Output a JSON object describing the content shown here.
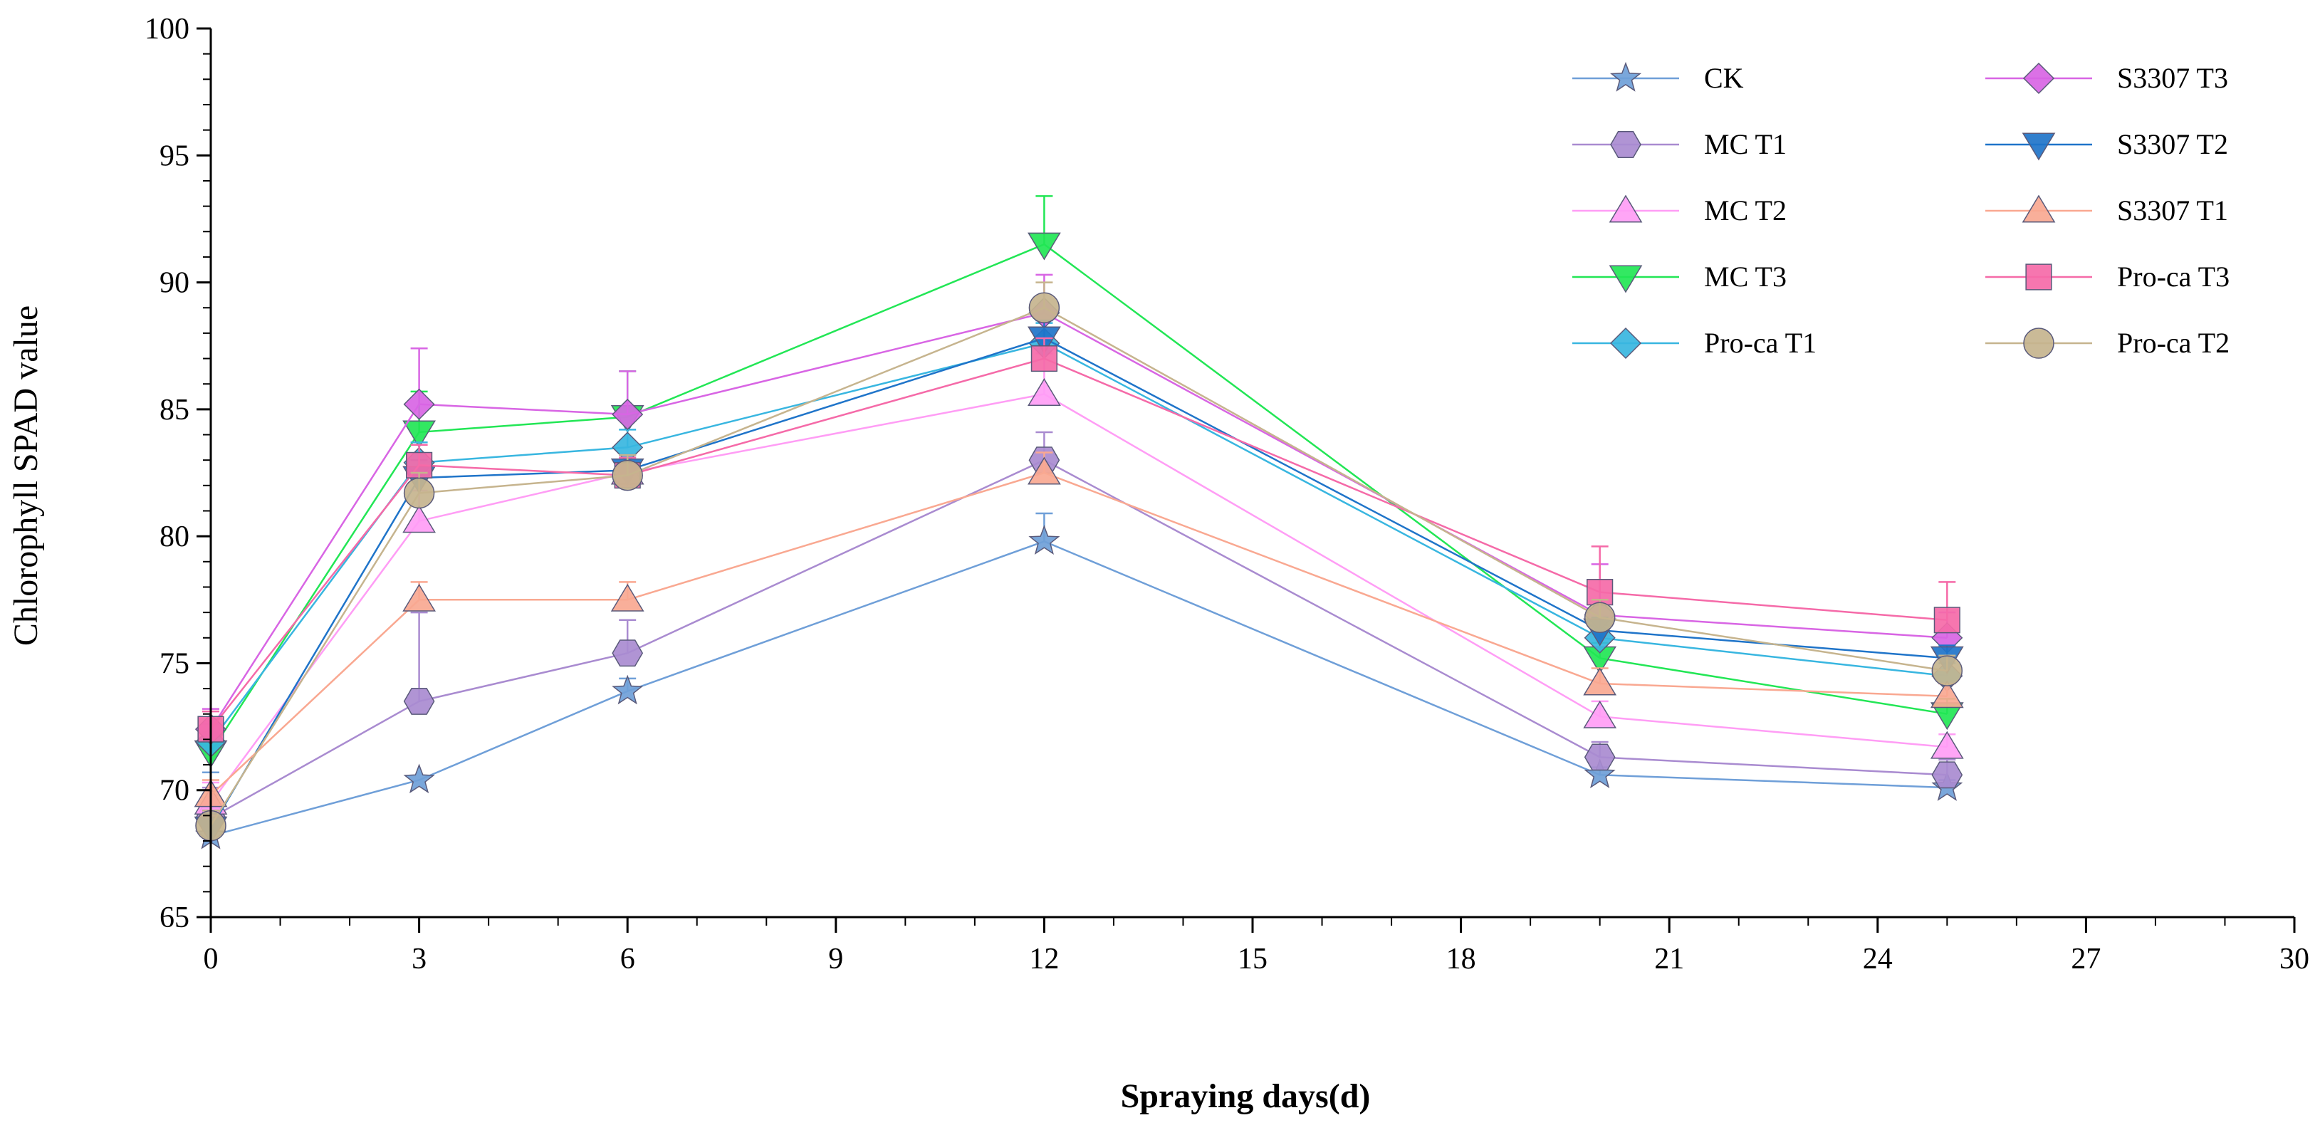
{
  "chart_data": {
    "type": "line",
    "title": "",
    "xlabel": "Spraying days(d)",
    "ylabel": "Chlorophyll SPAD value",
    "xlim": [
      0,
      30
    ],
    "ylim": [
      65,
      100
    ],
    "x_ticks": [
      "0",
      "3",
      "6",
      "9",
      "12",
      "15",
      "18",
      "21",
      "24",
      "27",
      "30"
    ],
    "y_ticks": [
      "65",
      "70",
      "75",
      "80",
      "85",
      "90",
      "95",
      "100"
    ],
    "legend_position": "top-right",
    "grid": false,
    "x": [
      0,
      3,
      6,
      12,
      20,
      25
    ],
    "series": [
      {
        "name": "CK",
        "color": "#6f9fd8",
        "marker": "star",
        "values": [
          68.2,
          70.4,
          73.9,
          79.8,
          70.6,
          70.1
        ],
        "errors": [
          2.5,
          0,
          0.5,
          1.1,
          0.3,
          0.3
        ]
      },
      {
        "name": "MC T1",
        "color": "#a98bd0",
        "marker": "hexagon",
        "values": [
          68.9,
          73.5,
          75.4,
          83.0,
          71.3,
          70.6
        ],
        "errors": [
          1.2,
          3.5,
          1.3,
          1.1,
          0.6,
          0.6
        ]
      },
      {
        "name": "MC T2",
        "color": "#ff9df5",
        "marker": "triangle-up",
        "values": [
          69.5,
          80.6,
          82.5,
          85.6,
          72.9,
          71.7
        ],
        "errors": [
          0.8,
          1.2,
          0.6,
          1.6,
          0.6,
          0.5
        ]
      },
      {
        "name": "MC T3",
        "color": "#22e655",
        "marker": "triangle-down",
        "values": [
          71.5,
          84.1,
          84.7,
          91.5,
          75.2,
          73.0
        ],
        "errors": [
          0.8,
          1.6,
          1.8,
          1.9,
          0.6,
          0.6
        ]
      },
      {
        "name": "Pro-ca T1",
        "color": "#38b6e0",
        "marker": "diamond",
        "values": [
          71.9,
          82.9,
          83.5,
          87.6,
          76.0,
          74.5
        ],
        "errors": [
          0.7,
          0.8,
          0.7,
          0.8,
          0.5,
          0.5
        ]
      },
      {
        "name": "S3307 T3",
        "color": "#d865e4",
        "marker": "diamond",
        "values": [
          72.4,
          85.2,
          84.8,
          88.8,
          76.9,
          76.0
        ],
        "errors": [
          0.8,
          2.2,
          1.7,
          1.5,
          2.0,
          1.0
        ]
      },
      {
        "name": "S3307 T2",
        "color": "#1f74c9",
        "marker": "triangle-down",
        "values": [
          68.5,
          82.3,
          82.6,
          87.8,
          76.3,
          75.2
        ],
        "errors": [
          0.6,
          0.7,
          0.6,
          0.7,
          0.5,
          0.5
        ]
      },
      {
        "name": "S3307 T1",
        "color": "#f9a891",
        "marker": "triangle-up",
        "values": [
          69.8,
          77.5,
          77.5,
          82.5,
          74.2,
          73.7
        ],
        "errors": [
          0.6,
          0.7,
          0.7,
          0.8,
          0.6,
          0.5
        ]
      },
      {
        "name": "Pro-ca T3",
        "color": "#f56aa8",
        "marker": "square",
        "values": [
          72.4,
          82.8,
          82.4,
          87.0,
          77.8,
          76.7
        ],
        "errors": [
          0.7,
          0.8,
          0.7,
          0.8,
          1.8,
          1.5
        ]
      },
      {
        "name": "Pro-ca T2",
        "color": "#c6b48e",
        "marker": "circle",
        "values": [
          68.6,
          81.7,
          82.4,
          89.0,
          76.8,
          74.7
        ],
        "errors": [
          0.6,
          0.8,
          0.8,
          1.0,
          0.7,
          0.6
        ]
      }
    ]
  }
}
